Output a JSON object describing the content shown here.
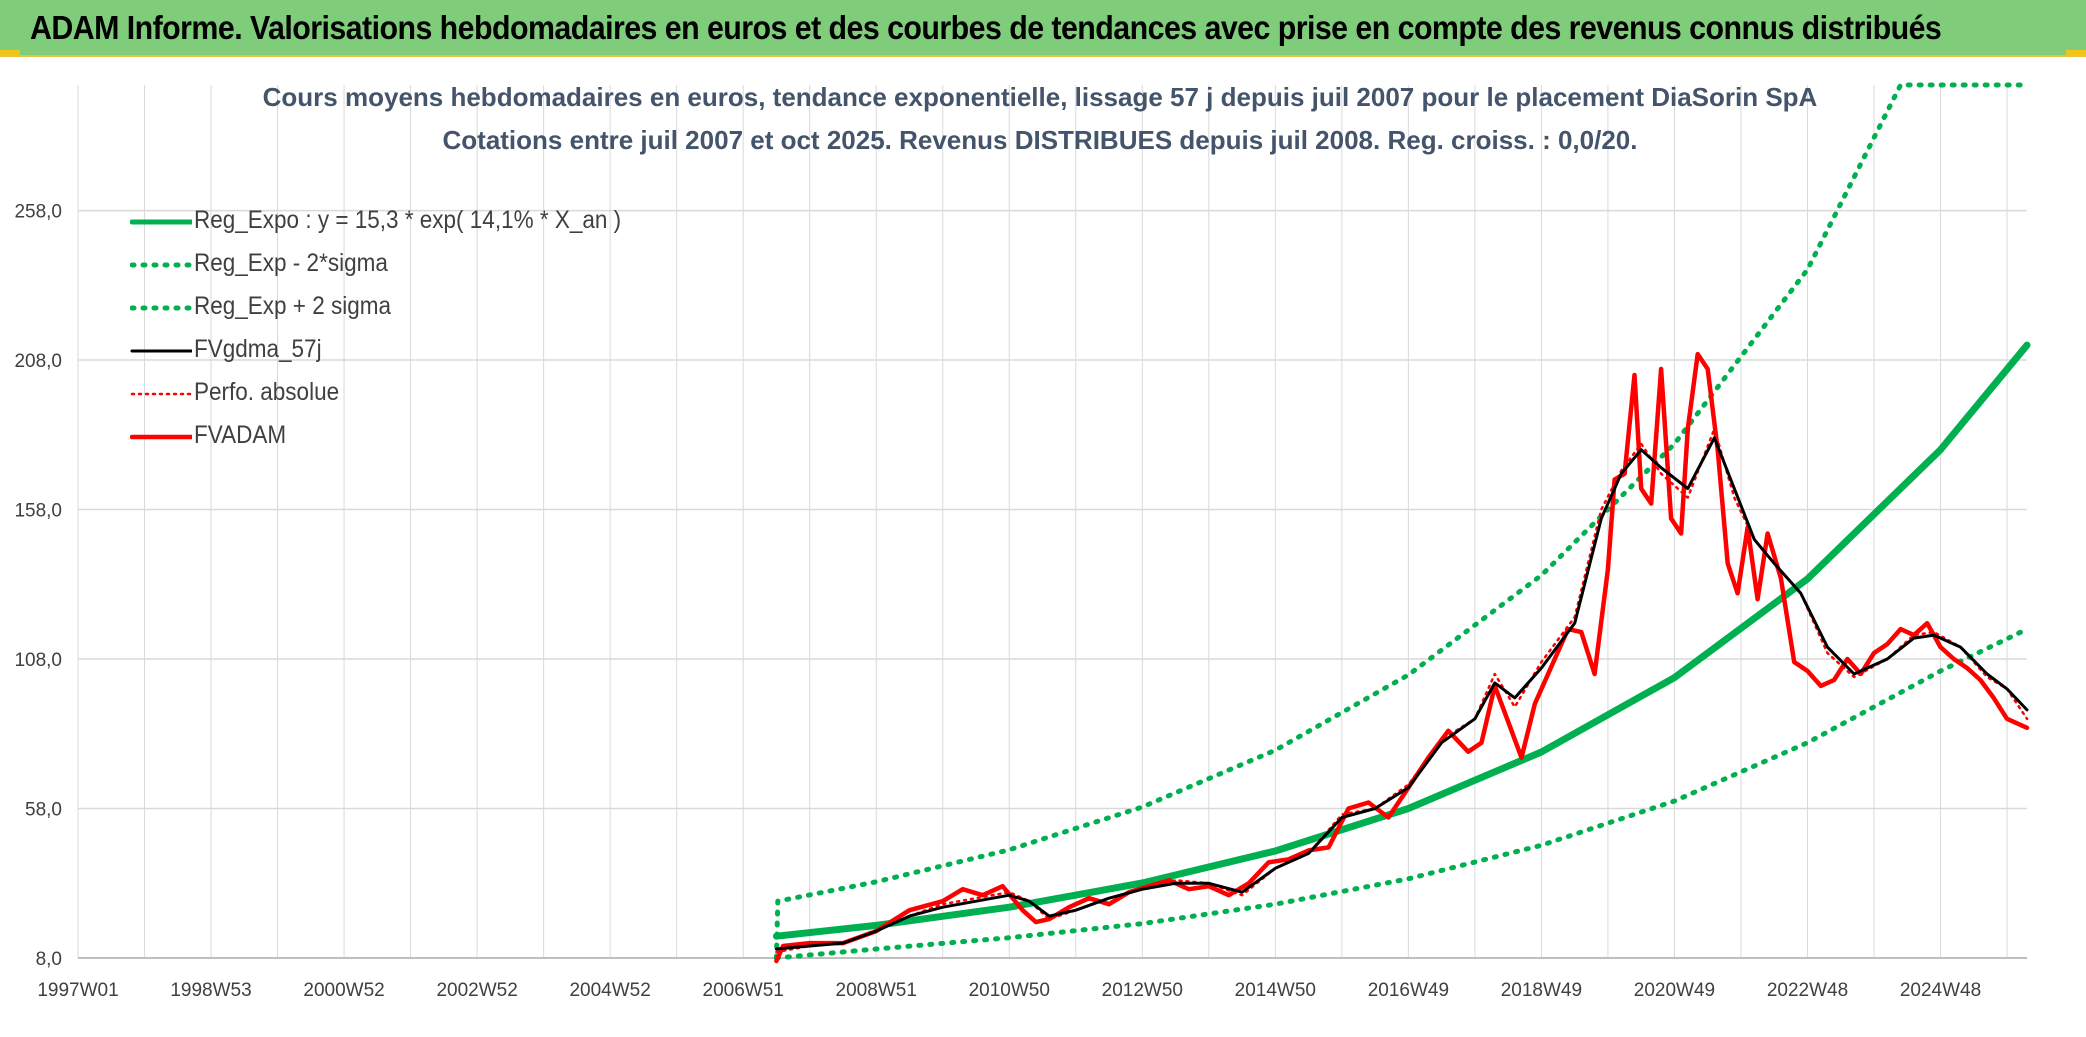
{
  "banner": {
    "title": "ADAM Informe. Valorisations hebdomadaires en euros et des courbes de tendances avec prise en compte des revenus connus distribués"
  },
  "colors": {
    "banner_bg": "#7fcc7a",
    "accent": "#f0c419",
    "trend": "#00b050",
    "gdma": "#000000",
    "fvadam": "#ff0000",
    "title": "#44546a"
  },
  "chart_data": {
    "type": "line",
    "title": "Cours moyens hebdomadaires en euros, tendance exponentielle, lissage 57 j depuis juil 2007 pour le placement DiaSorin SpA",
    "subtitle": "Cotations entre juil 2007 et oct 2025. Revenus DISTRIBUES depuis juil 2008. Reg. croiss. : 0,0/20.",
    "x_tick_labels": [
      "1997W01",
      "1998W53",
      "2000W52",
      "2002W52",
      "2004W52",
      "2006W51",
      "2008W51",
      "2010W50",
      "2012W50",
      "2014W50",
      "2016W49",
      "2018W49",
      "2020W49",
      "2022W48",
      "2024W48"
    ],
    "x_range": [
      1997.0,
      2026.3
    ],
    "y_tick_labels": [
      "8,0",
      "58,0",
      "108,0",
      "158,0",
      "208,0",
      "258,0"
    ],
    "y_ticks": [
      8,
      58,
      108,
      158,
      208,
      258
    ],
    "ylim": [
      8,
      300
    ],
    "legend_position": "top-left",
    "legend": [
      "Reg_Expo : y = 15,3 * exp( 14,1% *  X_an )",
      "Reg_Exp - 2*sigma",
      "Reg_Exp + 2 sigma",
      "FVgdma_57j",
      "Perfo. absolue",
      "FVADAM"
    ],
    "series": [
      {
        "name": "Reg_Expo : y = 15,3 * exp( 14,1% *  X_an )",
        "style": "solid-green",
        "x": [
          2007.5,
          2009,
          2011,
          2013,
          2015,
          2017,
          2019,
          2021,
          2023,
          2025,
          2026.3
        ],
        "y": [
          15.3,
          18.9,
          25.0,
          33.1,
          43.8,
          58.0,
          76.9,
          101.8,
          134.8,
          178.0,
          213.0
        ]
      },
      {
        "name": "Reg_Exp - 2*sigma",
        "style": "dotted-green",
        "x": [
          2007.5,
          2009,
          2011,
          2013,
          2015,
          2017,
          2019,
          2021,
          2023,
          2025,
          2026.3
        ],
        "y": [
          8.0,
          11.0,
          14.8,
          19.5,
          26.0,
          34.5,
          45.7,
          60.5,
          80.0,
          104.0,
          118.0
        ]
      },
      {
        "name": "Reg_Exp + 2 sigma",
        "style": "dotted-green",
        "x": [
          2007.5,
          2007.52,
          2009,
          2011,
          2013,
          2015,
          2017,
          2019,
          2021,
          2023,
          2024.4,
          2026.3
        ],
        "y": [
          8.0,
          27.0,
          33.5,
          44.2,
          58.5,
          77.5,
          102.7,
          136.0,
          180.0,
          238.3,
          300.0,
          300.0
        ]
      },
      {
        "name": "FVgdma_57j",
        "style": "solid-black",
        "x": [
          2007.5,
          2008.0,
          2008.5,
          2009.0,
          2009.5,
          2010.0,
          2010.5,
          2011.0,
          2011.3,
          2011.6,
          2012.0,
          2012.5,
          2013.0,
          2013.5,
          2014.0,
          2014.5,
          2015.0,
          2015.5,
          2016.0,
          2016.5,
          2017.0,
          2017.5,
          2018.0,
          2018.3,
          2018.6,
          2019.0,
          2019.5,
          2019.9,
          2020.2,
          2020.5,
          2020.8,
          2021.2,
          2021.6,
          2021.9,
          2022.2,
          2022.5,
          2022.9,
          2023.3,
          2023.7,
          2024.2,
          2024.6,
          2024.9,
          2025.3,
          2025.7,
          2026.0,
          2026.3
        ],
        "y": [
          11,
          12,
          13,
          17,
          22,
          25,
          27,
          29,
          27,
          22,
          24,
          28,
          31,
          33,
          33,
          30,
          38,
          43,
          55,
          58,
          65,
          80,
          88,
          100,
          95,
          105,
          120,
          155,
          170,
          178,
          172,
          165,
          182,
          165,
          148,
          140,
          130,
          112,
          103,
          108,
          115,
          116,
          112,
          103,
          98,
          91
        ]
      },
      {
        "name": "Perfo. absolue",
        "style": "dotted-red",
        "x": [
          2007.5,
          2008.0,
          2008.5,
          2009.0,
          2009.5,
          2010.0,
          2010.5,
          2011.0,
          2011.3,
          2011.6,
          2012.0,
          2012.5,
          2013.0,
          2013.5,
          2014.0,
          2014.5,
          2015.0,
          2015.5,
          2016.0,
          2016.5,
          2017.0,
          2017.5,
          2018.0,
          2018.3,
          2018.6,
          2019.0,
          2019.5,
          2019.9,
          2020.2,
          2020.5,
          2020.8,
          2021.2,
          2021.6,
          2021.9,
          2022.2,
          2022.5,
          2022.9,
          2023.3,
          2023.7,
          2024.2,
          2024.6,
          2024.9,
          2025.3,
          2025.7,
          2026.0,
          2026.3
        ],
        "y": [
          10,
          12,
          13,
          17,
          22,
          26,
          28,
          30,
          27,
          21,
          24,
          28,
          31,
          34,
          33,
          29,
          38,
          43,
          56,
          58,
          66,
          81,
          88,
          103,
          92,
          107,
          122,
          158,
          171,
          180,
          170,
          162,
          185,
          162,
          148,
          140,
          130,
          110,
          102,
          108,
          116,
          117,
          112,
          102,
          98,
          88
        ]
      },
      {
        "name": "FVADAM",
        "style": "solid-red",
        "x": [
          2007.5,
          2007.6,
          2008.0,
          2008.5,
          2009.0,
          2009.5,
          2010.0,
          2010.3,
          2010.6,
          2010.9,
          2011.2,
          2011.4,
          2011.6,
          2011.9,
          2012.2,
          2012.5,
          2012.8,
          2013.1,
          2013.4,
          2013.7,
          2014.0,
          2014.3,
          2014.6,
          2014.9,
          2015.2,
          2015.5,
          2015.8,
          2016.1,
          2016.4,
          2016.7,
          2017.0,
          2017.3,
          2017.6,
          2017.9,
          2018.1,
          2018.3,
          2018.5,
          2018.7,
          2018.9,
          2019.1,
          2019.4,
          2019.6,
          2019.8,
          2020.0,
          2020.1,
          2020.25,
          2020.4,
          2020.5,
          2020.65,
          2020.8,
          2020.95,
          2021.1,
          2021.2,
          2021.35,
          2021.5,
          2021.65,
          2021.8,
          2021.95,
          2022.1,
          2022.25,
          2022.4,
          2022.6,
          2022.8,
          2023.0,
          2023.2,
          2023.4,
          2023.6,
          2023.8,
          2024.0,
          2024.2,
          2024.4,
          2024.6,
          2024.8,
          2025.0,
          2025.2,
          2025.4,
          2025.6,
          2025.8,
          2026.0,
          2026.3
        ],
        "y": [
          7,
          12,
          13,
          13,
          17,
          24,
          27,
          31,
          29,
          32,
          24,
          20,
          21,
          25,
          28,
          26,
          30,
          32,
          34,
          31,
          32,
          29,
          33,
          40,
          41,
          44,
          45,
          58,
          60,
          55,
          65,
          75,
          84,
          77,
          80,
          99,
          87,
          75,
          93,
          103,
          118,
          117,
          103,
          138,
          168,
          170,
          203,
          165,
          160,
          205,
          155,
          150,
          185,
          210,
          205,
          178,
          140,
          130,
          152,
          128,
          150,
          135,
          107,
          104,
          99,
          101,
          108,
          103,
          110,
          113,
          118,
          116,
          120,
          112,
          108,
          105,
          101,
          95,
          88,
          85
        ]
      }
    ]
  }
}
